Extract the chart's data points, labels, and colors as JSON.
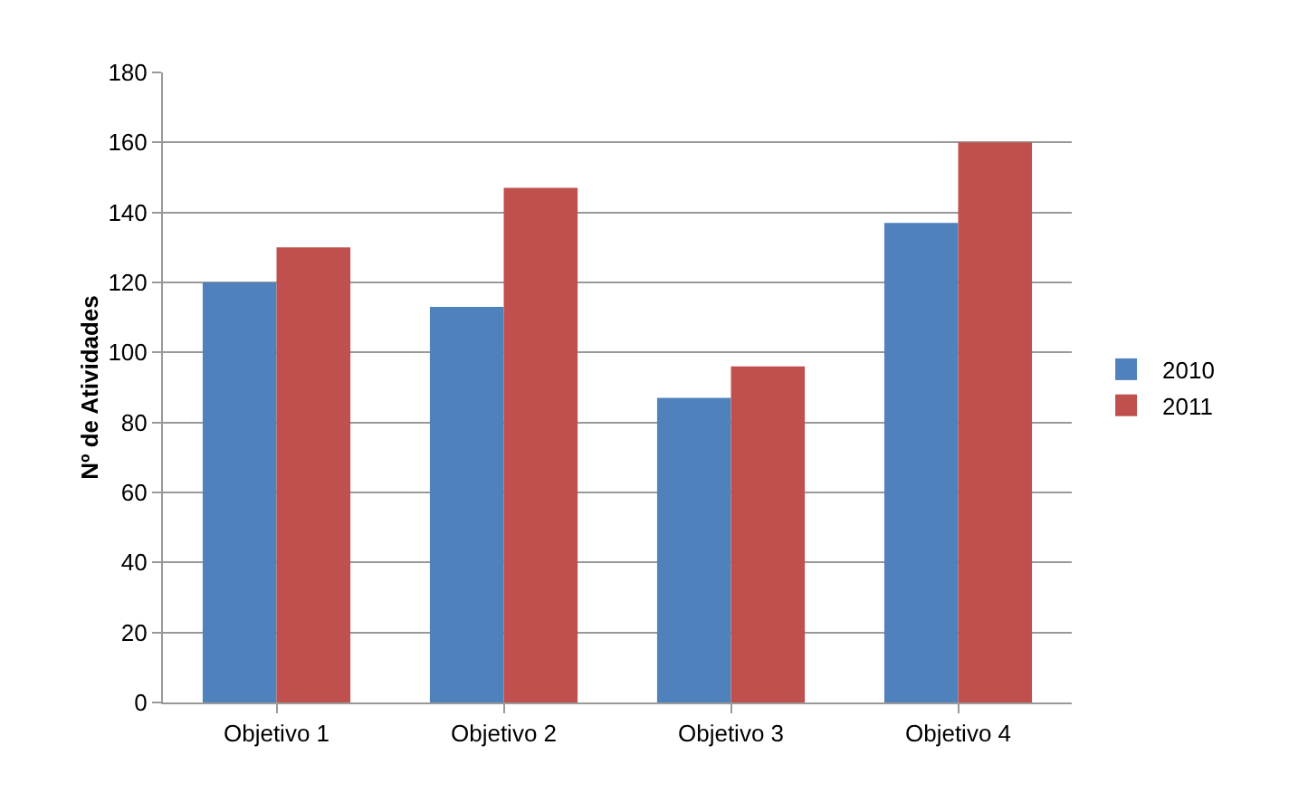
{
  "chart_data": {
    "type": "bar",
    "ylabel": "Nº de Atividades",
    "categories": [
      "Objetivo 1",
      "Objetivo 2",
      "Objetivo 3",
      "Objetivo 4"
    ],
    "series": [
      {
        "name": "2010",
        "color": "#4f81bd",
        "values": [
          120,
          113,
          87,
          137
        ]
      },
      {
        "name": "2011",
        "color": "#c0504d",
        "values": [
          130,
          147,
          96,
          160
        ]
      }
    ],
    "ylim": [
      0,
      180
    ],
    "yticks": [
      0,
      20,
      40,
      60,
      80,
      100,
      120,
      140,
      160,
      180
    ],
    "grid": "y",
    "legend": "right"
  }
}
